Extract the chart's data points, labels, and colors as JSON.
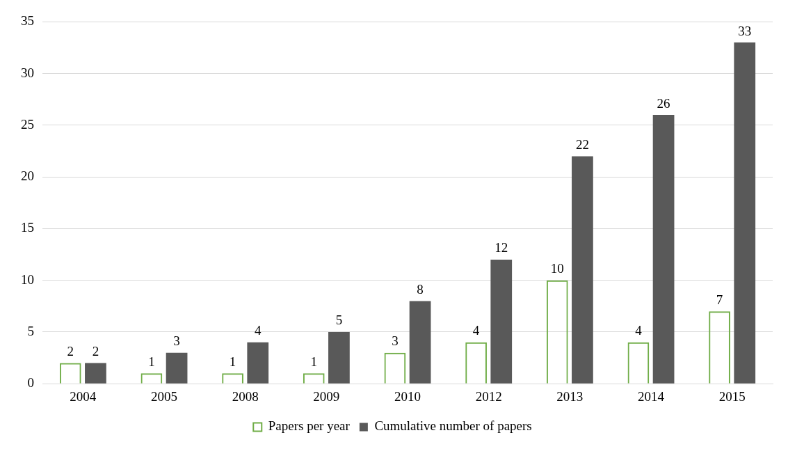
{
  "chart_data": {
    "type": "bar",
    "categories": [
      "2004",
      "2005",
      "2008",
      "2009",
      "2010",
      "2012",
      "2013",
      "2014",
      "2015"
    ],
    "series": [
      {
        "name": "Papers per year",
        "color": "#70ad47",
        "values": [
          2,
          1,
          1,
          1,
          3,
          4,
          10,
          4,
          7
        ]
      },
      {
        "name": "Cumulative number of papers",
        "color": "#595959",
        "values": [
          2,
          3,
          4,
          5,
          8,
          12,
          22,
          26,
          33
        ]
      }
    ],
    "ylim": [
      0,
      35
    ],
    "yticks": [
      0,
      5,
      10,
      15,
      20,
      25,
      30,
      35
    ],
    "grid": "y",
    "legend": "bottom",
    "data_labels": true
  }
}
